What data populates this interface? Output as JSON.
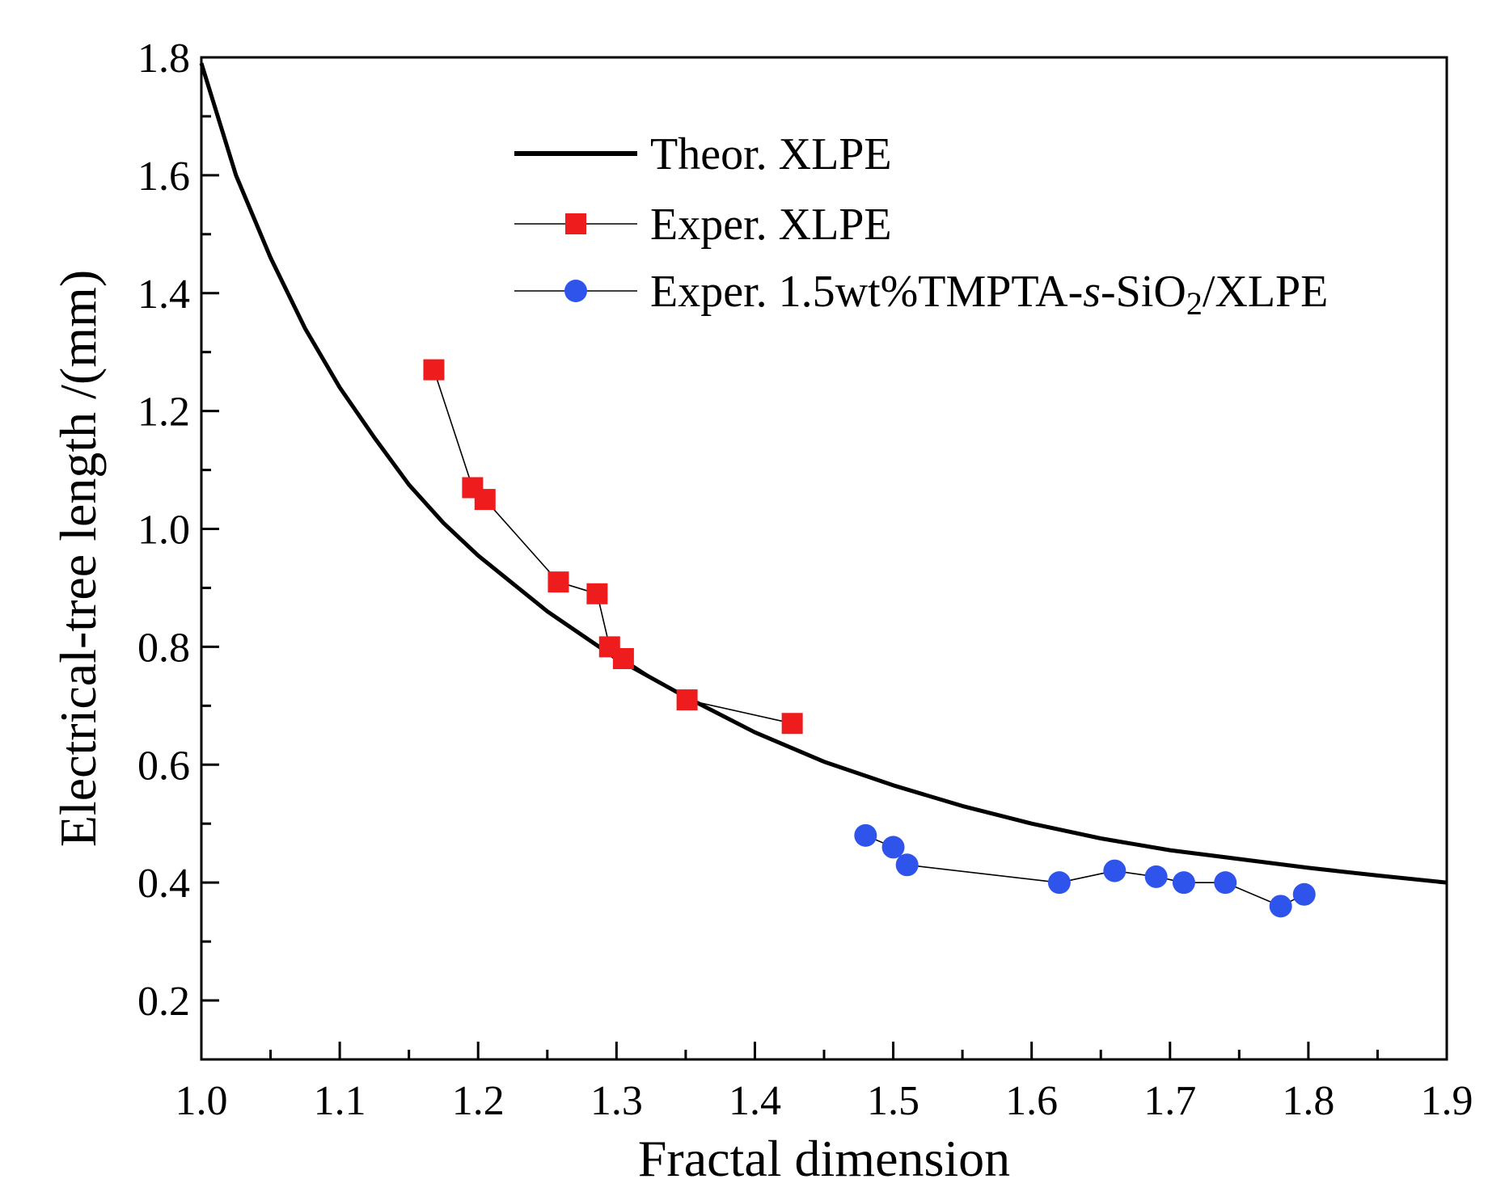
{
  "chart_data": {
    "type": "line",
    "title": "",
    "xlabel": "Fractal dimension",
    "ylabel": "Electrical-tree length /(mm)",
    "xlim": [
      1.0,
      1.9
    ],
    "ylim": [
      0.1,
      1.8
    ],
    "xticks": [
      1.0,
      1.1,
      1.2,
      1.3,
      1.4,
      1.5,
      1.6,
      1.7,
      1.8,
      1.9
    ],
    "xtick_labels": [
      "1.0",
      "1.1",
      "1.2",
      "1.3",
      "1.4",
      "1.5",
      "1.6",
      "1.7",
      "1.8",
      "1.9"
    ],
    "yticks": [
      0.2,
      0.4,
      0.6,
      0.8,
      1.0,
      1.2,
      1.4,
      1.6,
      1.8
    ],
    "ytick_labels": [
      "0.2",
      "0.4",
      "0.6",
      "0.8",
      "1.0",
      "1.2",
      "1.4",
      "1.6",
      "1.8"
    ],
    "grid": false,
    "legend_position": "top-right",
    "series": [
      {
        "name": "Theor. XLPE",
        "kind": "curve",
        "color": "#000000",
        "x": [
          1.0,
          1.025,
          1.05,
          1.075,
          1.1,
          1.125,
          1.15,
          1.175,
          1.2,
          1.25,
          1.3,
          1.35,
          1.4,
          1.45,
          1.5,
          1.55,
          1.6,
          1.65,
          1.7,
          1.75,
          1.8,
          1.85,
          1.9
        ],
        "y": [
          1.79,
          1.6,
          1.46,
          1.34,
          1.24,
          1.155,
          1.075,
          1.01,
          0.955,
          0.86,
          0.78,
          0.715,
          0.655,
          0.605,
          0.565,
          0.53,
          0.5,
          0.475,
          0.455,
          0.44,
          0.425,
          0.412,
          0.4
        ]
      },
      {
        "name": "Exper. XLPE",
        "kind": "marker-line",
        "marker": "square",
        "color": "#ee1c1c",
        "x": [
          1.168,
          1.196,
          1.205,
          1.258,
          1.286,
          1.295,
          1.305,
          1.351,
          1.427
        ],
        "y": [
          1.27,
          1.07,
          1.05,
          0.91,
          0.89,
          0.8,
          0.78,
          0.71,
          0.67
        ]
      },
      {
        "name": "Exper. 1.5wt%TMPTA-s-SiO2/XLPE",
        "name_parts": [
          "Exper. 1.5wt%TMPTA-",
          "s",
          "-SiO",
          "2",
          "/XLPE"
        ],
        "kind": "marker-line",
        "marker": "circle",
        "color": "#2f54eb",
        "x": [
          1.48,
          1.5,
          1.51,
          1.62,
          1.66,
          1.69,
          1.71,
          1.74,
          1.78,
          1.797
        ],
        "y": [
          0.48,
          0.46,
          0.43,
          0.4,
          0.42,
          0.41,
          0.4,
          0.4,
          0.36,
          0.38
        ]
      }
    ]
  }
}
